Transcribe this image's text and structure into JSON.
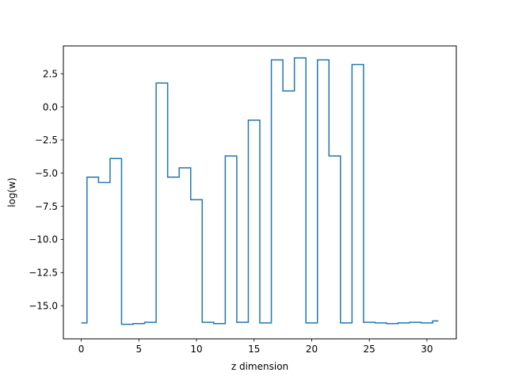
{
  "chart_data": {
    "type": "line",
    "style": "step-mid",
    "title": "",
    "xlabel": "z dimension",
    "ylabel": "log(w)",
    "xlim": [
      -1.55,
      32.55
    ],
    "ylim": [
      -17.5,
      4.6
    ],
    "xticks": [
      0,
      5,
      10,
      15,
      20,
      25,
      30
    ],
    "yticks": [
      -15.0,
      -12.5,
      -10.0,
      -7.5,
      -5.0,
      -2.5,
      0.0,
      2.5
    ],
    "ytick_labels": [
      "−15.0",
      "−12.5",
      "−10.0",
      "−7.5",
      "−5.0",
      "−2.5",
      "0.0",
      "2.5"
    ],
    "xtick_labels": [
      "0",
      "5",
      "10",
      "15",
      "20",
      "25",
      "30"
    ],
    "grid": false,
    "line_color": "#1f77b4",
    "series": [
      {
        "x": [
          0,
          1,
          2,
          3,
          4,
          5,
          6,
          7,
          8,
          9,
          10,
          11,
          12,
          13,
          14,
          15,
          16,
          17,
          18,
          19,
          20,
          21,
          22,
          23,
          24,
          25,
          26,
          27,
          28,
          29,
          30,
          31
        ],
        "values": [
          -16.3,
          -5.3,
          -5.7,
          -3.9,
          -16.4,
          -16.35,
          -16.25,
          1.8,
          -5.3,
          -4.6,
          -7.0,
          -16.25,
          -16.35,
          -3.7,
          -16.25,
          -1.0,
          -16.3,
          3.55,
          1.2,
          3.7,
          -16.3,
          3.55,
          -3.7,
          -16.3,
          3.2,
          -16.25,
          -16.3,
          -16.35,
          -16.3,
          -16.25,
          -16.3,
          -16.15
        ]
      }
    ]
  }
}
